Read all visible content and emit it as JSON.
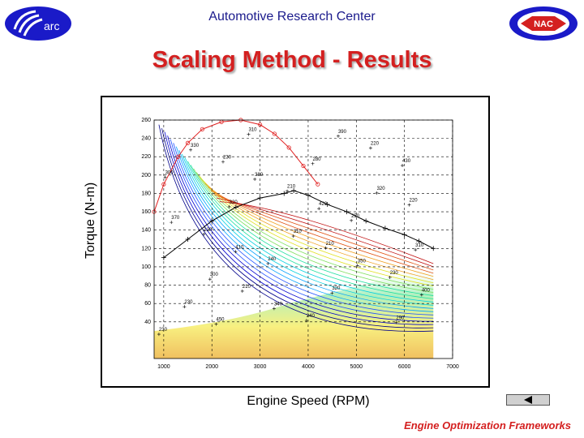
{
  "header": {
    "title": "Automotive Research Center",
    "left_logo_text": "arc",
    "right_logo_text": "NAC"
  },
  "slide": {
    "title": "Scaling Method - Results",
    "footer": "Engine Optimization Frameworks",
    "back_icon": "triangle-left-icon"
  },
  "chart_data": {
    "type": "line",
    "xlabel": "Engine Speed (RPM)",
    "ylabel": "Torque (N-m)",
    "xlim": [
      800,
      7000
    ],
    "ylim": [
      0,
      260
    ],
    "xticks": [
      1000,
      2000,
      3000,
      4000,
      5000,
      6000,
      7000
    ],
    "yticks": [
      40,
      60,
      80,
      100,
      120,
      140,
      160,
      180,
      200,
      220,
      240,
      260
    ],
    "grid": true,
    "series": [
      {
        "name": "",
        "color": "#e02020",
        "marker": "o",
        "x": [
          800,
          1000,
          1300,
          1500,
          1800,
          2200,
          2600,
          3000,
          3300,
          3600,
          3900,
          4200
        ],
        "y": [
          160,
          190,
          220,
          235,
          250,
          258,
          260,
          255,
          245,
          230,
          210,
          190
        ]
      },
      {
        "name": "",
        "color": "#000000",
        "marker": "+",
        "x": [
          1000,
          1500,
          2000,
          2500,
          3000,
          3500,
          3700,
          4000,
          4400,
          4800,
          5200,
          5600,
          6000,
          6300,
          6600
        ],
        "y": [
          110,
          130,
          150,
          165,
          175,
          180,
          183,
          178,
          168,
          160,
          150,
          142,
          135,
          128,
          120
        ]
      }
    ],
    "contour_labels": [
      "230",
      "210",
      "210",
      "220",
      "230",
      "240",
      "230",
      "220",
      "210",
      "220",
      "230",
      "240",
      "250",
      "300",
      "310",
      "320",
      "310",
      "320",
      "280",
      "290",
      "300",
      "310",
      "320",
      "330",
      "340",
      "350",
      "370",
      "380",
      "390",
      "400",
      "410",
      "420",
      "430",
      "450"
    ]
  }
}
